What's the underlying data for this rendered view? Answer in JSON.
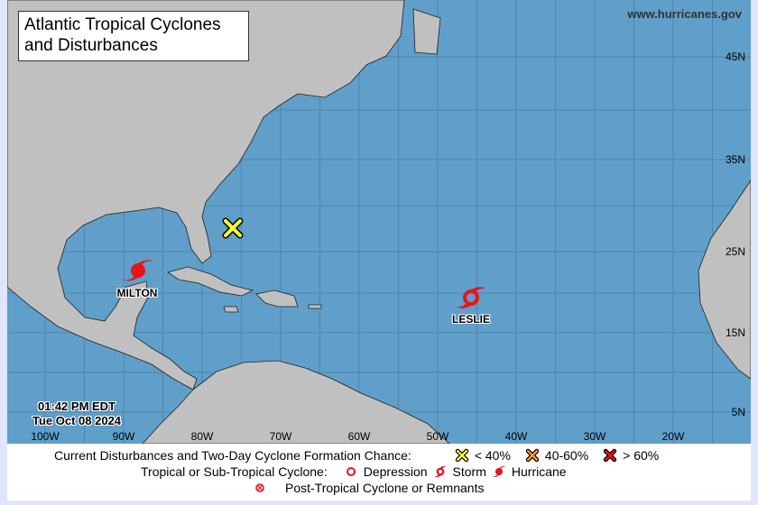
{
  "header": {
    "title": "Atlantic Tropical Cyclones and Disturbances",
    "site": "www.hurricanes.gov"
  },
  "timestamp": {
    "time": "01:42 PM EDT",
    "date": "Tue Oct 08 2024"
  },
  "axes": {
    "longitude_labels": [
      "100W",
      "90W",
      "80W",
      "70W",
      "60W",
      "50W",
      "40W",
      "30W",
      "20W"
    ],
    "latitude_labels": [
      "45N",
      "35N",
      "25N",
      "15N",
      "5N"
    ]
  },
  "systems": [
    {
      "name": "MILTON",
      "type": "Hurricane",
      "color": "#e8141c"
    },
    {
      "name": "LESLIE",
      "type": "Storm",
      "color": "#e8141c"
    }
  ],
  "disturbances": [
    {
      "chance": "< 40%",
      "color": "#ffff33"
    }
  ],
  "legend": {
    "formation_title": "Current Disturbances and Two-Day Cyclone Formation Chance:",
    "formation": [
      {
        "label": "< 40%",
        "color": "#ffff33"
      },
      {
        "label": "40-60%",
        "color": "#ff9933"
      },
      {
        "label": "> 60%",
        "color": "#ee1111"
      }
    ],
    "cyclone_title": "Tropical or Sub-Tropical Cyclone:",
    "cyclone": [
      {
        "label": "Depression"
      },
      {
        "label": "Storm"
      },
      {
        "label": "Hurricane"
      }
    ],
    "post_tropical": "Post-Tropical Cyclone or Remnants"
  },
  "colors": {
    "ocean": "#5f9fc9",
    "land": "#c0c0c0"
  }
}
